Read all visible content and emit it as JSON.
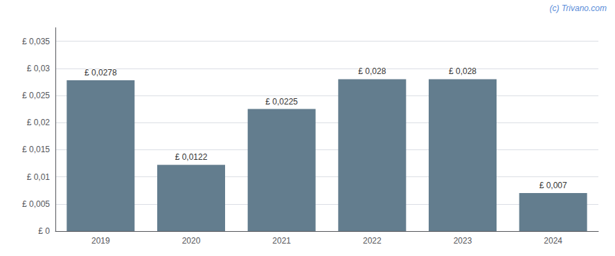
{
  "chart_data": {
    "type": "bar",
    "categories": [
      "2019",
      "2020",
      "2021",
      "2022",
      "2023",
      "2024"
    ],
    "values": [
      0.0278,
      0.0122,
      0.0225,
      0.028,
      0.028,
      0.007
    ],
    "value_labels": [
      "£ 0,0278",
      "£ 0,0122",
      "£ 0,0225",
      "£ 0,028",
      "£ 0,028",
      "£ 0,007"
    ],
    "data_labels": true,
    "color": "#637d8e",
    "ylim": [
      0,
      0.0375
    ],
    "yticks": [
      {
        "value": 0,
        "label": "£ 0"
      },
      {
        "value": 0.005,
        "label": "£ 0,005"
      },
      {
        "value": 0.01,
        "label": "£ 0,01"
      },
      {
        "value": 0.015,
        "label": "£ 0,015"
      },
      {
        "value": 0.02,
        "label": "£ 0,02"
      },
      {
        "value": 0.025,
        "label": "£ 0,025"
      },
      {
        "value": 0.03,
        "label": "£ 0,03"
      },
      {
        "value": 0.035,
        "label": "£ 0,035"
      }
    ],
    "grid": true,
    "annotations": [
      "(c) Trivano.com"
    ]
  }
}
